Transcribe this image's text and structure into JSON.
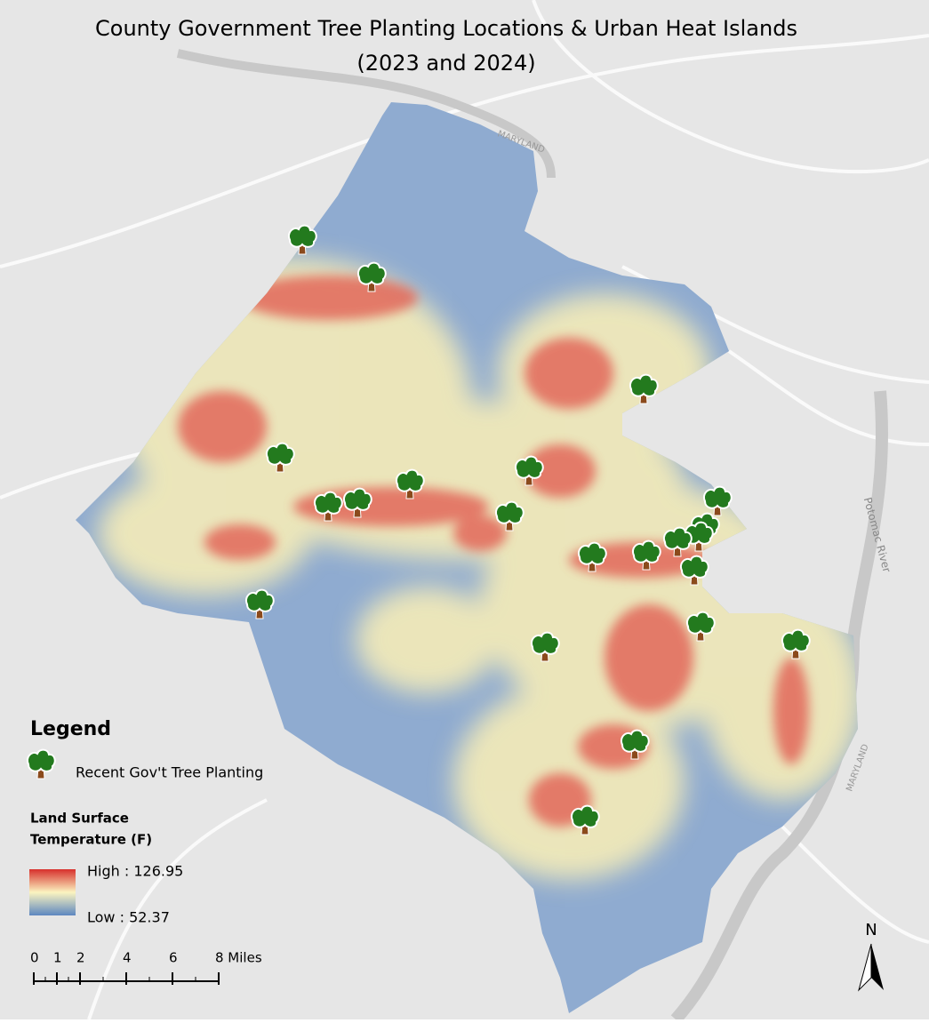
{
  "title": [
    "County Government Tree Planting Locations & Urban Heat Islands",
    "(2023 and 2024)"
  ],
  "map_labels": [
    "MARYLAND",
    "Potomac River",
    "MARYLAND"
  ],
  "legend": {
    "title": "Legend",
    "items": [
      "Recent Gov't Tree Planting"
    ],
    "raster_title": [
      "Land Surface",
      "Temperature (F)"
    ],
    "high": "High : 126.95",
    "low": "Low : 52.37"
  },
  "scale_bar": [
    "0",
    "1",
    "2",
    "4",
    "6",
    "8 Miles"
  ],
  "north": "N"
}
